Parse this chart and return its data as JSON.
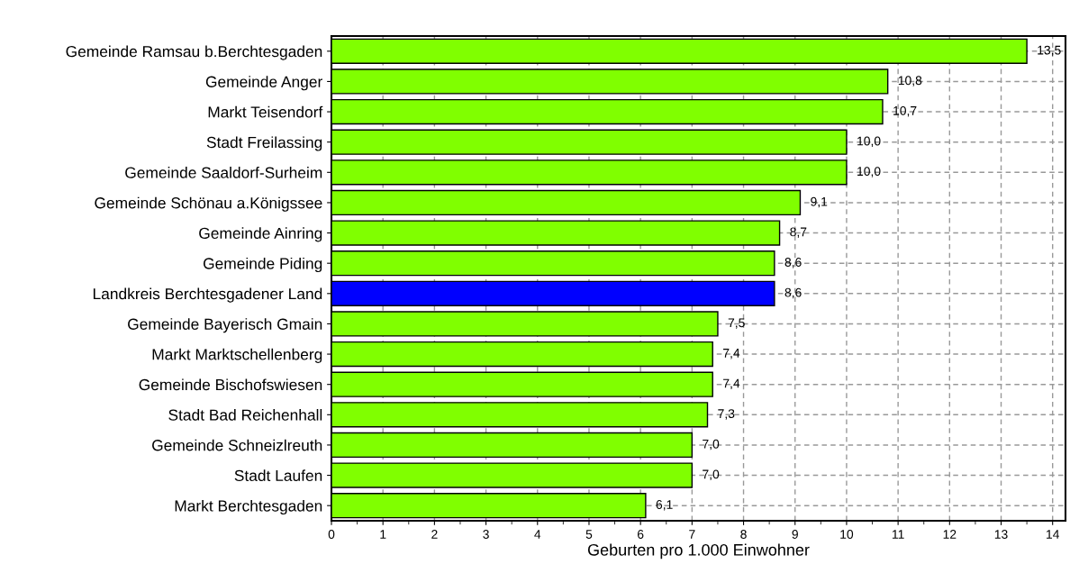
{
  "chart_data": {
    "type": "bar",
    "orientation": "horizontal",
    "categories": [
      "Gemeinde Ramsau b.Berchtesgaden",
      "Gemeinde Anger",
      "Markt Teisendorf",
      "Stadt Freilassing",
      "Gemeinde Saaldorf-Surheim",
      "Gemeinde Schönau a.Königssee",
      "Gemeinde Ainring",
      "Gemeinde Piding",
      "Landkreis Berchtesgadener Land",
      "Gemeinde Bayerisch Gmain",
      "Markt Marktschellenberg",
      "Gemeinde Bischofswiesen",
      "Stadt Bad Reichenhall",
      "Gemeinde Schneizlreuth",
      "Stadt Laufen",
      "Markt Berchtesgaden"
    ],
    "values": [
      13.5,
      10.8,
      10.7,
      10.0,
      10.0,
      9.1,
      8.7,
      8.6,
      8.6,
      7.5,
      7.4,
      7.4,
      7.3,
      7.0,
      7.0,
      6.1
    ],
    "value_labels": [
      "13,5",
      "10,8",
      "10,7",
      "10,0",
      "10,0",
      "9,1",
      "8,7",
      "8,6",
      "8,6",
      "7,5",
      "7,4",
      "7,4",
      "7,3",
      "7,0",
      "7,0",
      "6,1"
    ],
    "colors": [
      "#80ff00",
      "#80ff00",
      "#80ff00",
      "#80ff00",
      "#80ff00",
      "#80ff00",
      "#80ff00",
      "#80ff00",
      "#0000ff",
      "#80ff00",
      "#80ff00",
      "#80ff00",
      "#80ff00",
      "#80ff00",
      "#80ff00",
      "#80ff00"
    ],
    "xlabel": "Geburten pro 1.000 Einwohner",
    "xlim": [
      0,
      14.25
    ],
    "xticks": [
      0,
      1,
      2,
      3,
      4,
      5,
      6,
      7,
      8,
      9,
      10,
      11,
      12,
      13,
      14
    ],
    "grid": true,
    "legend": false
  }
}
